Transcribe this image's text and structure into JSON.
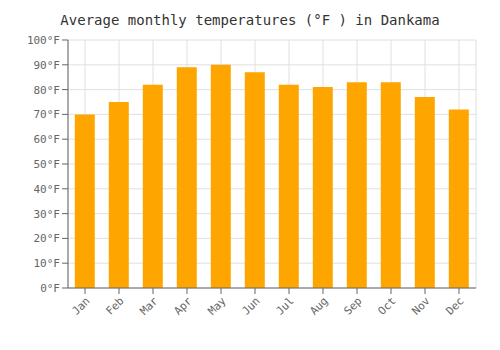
{
  "chart_data": {
    "type": "bar",
    "title": "Average monthly temperatures (°F ) in Dankama",
    "categories": [
      "Jan",
      "Feb",
      "Mar",
      "Apr",
      "May",
      "Jun",
      "Jul",
      "Aug",
      "Sep",
      "Oct",
      "Nov",
      "Dec"
    ],
    "values": [
      70,
      75,
      82,
      89,
      90,
      87,
      82,
      81,
      83,
      83,
      77,
      72
    ],
    "color": "#FFA500",
    "ylim": [
      0,
      100
    ],
    "yticks": [
      {
        "value": 0,
        "label": "0°F"
      },
      {
        "value": 10,
        "label": "10°F"
      },
      {
        "value": 20,
        "label": "20°F"
      },
      {
        "value": 30,
        "label": "30°F"
      },
      {
        "value": 40,
        "label": "40°F"
      },
      {
        "value": 50,
        "label": "50°F"
      },
      {
        "value": 60,
        "label": "60°F"
      },
      {
        "value": 70,
        "label": "70°F"
      },
      {
        "value": 80,
        "label": "80°F"
      },
      {
        "value": 90,
        "label": "90°F"
      },
      {
        "value": 100,
        "label": "100°F"
      }
    ],
    "grid": true
  }
}
